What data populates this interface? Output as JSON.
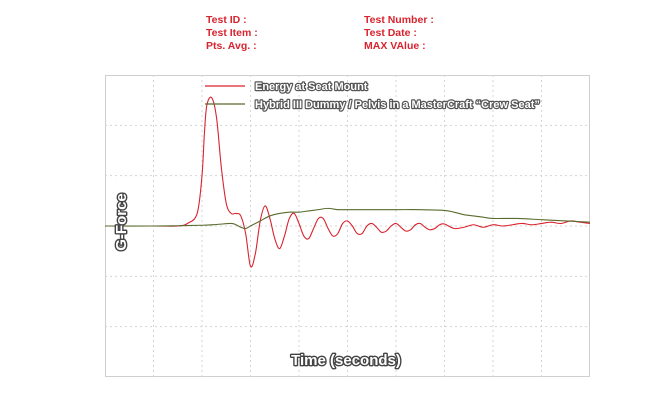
{
  "header": {
    "left": [
      {
        "label": "Test ID :"
      },
      {
        "label": "Test Item :"
      },
      {
        "label": "Pts. Avg. :"
      }
    ],
    "right": [
      {
        "label": "Test Number :"
      },
      {
        "label": "Test Date :"
      },
      {
        "label": "MAX VAlue :"
      }
    ]
  },
  "chart_data": {
    "type": "line",
    "title": "",
    "xlabel": "Time (seconds)",
    "ylabel": "G-Force",
    "xlim": [
      0,
      10
    ],
    "ylim": [
      -6,
      6
    ],
    "grid": true,
    "legend_position": "top-center",
    "series": [
      {
        "name": "Energy at Seat Mount",
        "color": "#d9232e",
        "x": [
          0,
          1,
          1.5,
          1.7,
          1.9,
          2.0,
          2.05,
          2.1,
          2.2,
          2.3,
          2.4,
          2.5,
          2.6,
          2.7,
          2.8,
          2.9,
          3.0,
          3.1,
          3.2,
          3.3,
          3.4,
          3.5,
          3.6,
          3.7,
          3.8,
          3.9,
          4.0,
          4.1,
          4.2,
          4.3,
          4.4,
          4.5,
          4.6,
          4.7,
          4.8,
          4.9,
          5.0,
          5.1,
          5.2,
          5.3,
          5.4,
          5.5,
          5.6,
          5.7,
          5.8,
          5.9,
          6.0,
          6.1,
          6.2,
          6.3,
          6.4,
          6.5,
          6.6,
          6.7,
          6.8,
          6.9,
          7.0,
          7.2,
          7.4,
          7.6,
          7.8,
          8.0,
          8.2,
          8.4,
          8.6,
          8.8,
          9.0,
          9.2,
          9.4,
          9.6,
          9.8,
          10.0
        ],
        "y": [
          0,
          0,
          0,
          0.1,
          0.5,
          2.0,
          3.7,
          4.8,
          5.1,
          4.3,
          2.3,
          0.9,
          0.5,
          0.5,
          0.4,
          -0.3,
          -1.6,
          -1.1,
          0.2,
          0.8,
          0.3,
          -0.5,
          -0.9,
          -0.4,
          0.3,
          0.5,
          0.1,
          -0.4,
          -0.5,
          -0.1,
          0.3,
          0.3,
          -0.1,
          -0.4,
          -0.3,
          0.1,
          0.2,
          0.0,
          -0.3,
          -0.3,
          0.0,
          0.1,
          -0.05,
          -0.25,
          -0.2,
          0.0,
          0.1,
          -0.05,
          -0.2,
          -0.15,
          0.05,
          0.1,
          -0.05,
          -0.15,
          -0.1,
          0.05,
          0.08,
          -0.1,
          -0.05,
          0.05,
          -0.05,
          0.05,
          0.0,
          0.05,
          0.1,
          0.05,
          0.1,
          0.15,
          0.1,
          0.2,
          0.15,
          0.1
        ]
      },
      {
        "name": "Hybrid III Dummy / Pelvis in a MasterCraft “Crew Seat”",
        "color": "#5a6b2e",
        "x": [
          0,
          1.0,
          1.5,
          2.0,
          2.3,
          2.6,
          2.7,
          2.8,
          2.9,
          3.0,
          3.2,
          3.4,
          3.6,
          3.8,
          4.0,
          4.2,
          4.4,
          4.6,
          4.8,
          5.0,
          5.5,
          6.0,
          6.5,
          7.0,
          7.2,
          7.4,
          7.6,
          7.8,
          8.0,
          8.5,
          9.0,
          9.5,
          10.0
        ],
        "y": [
          0,
          0,
          0.01,
          0.03,
          0.06,
          0.1,
          0.05,
          -0.05,
          -0.1,
          0.0,
          0.2,
          0.4,
          0.5,
          0.55,
          0.55,
          0.6,
          0.65,
          0.7,
          0.65,
          0.65,
          0.65,
          0.65,
          0.65,
          0.62,
          0.55,
          0.45,
          0.4,
          0.35,
          0.3,
          0.3,
          0.25,
          0.2,
          0.15
        ]
      }
    ]
  }
}
